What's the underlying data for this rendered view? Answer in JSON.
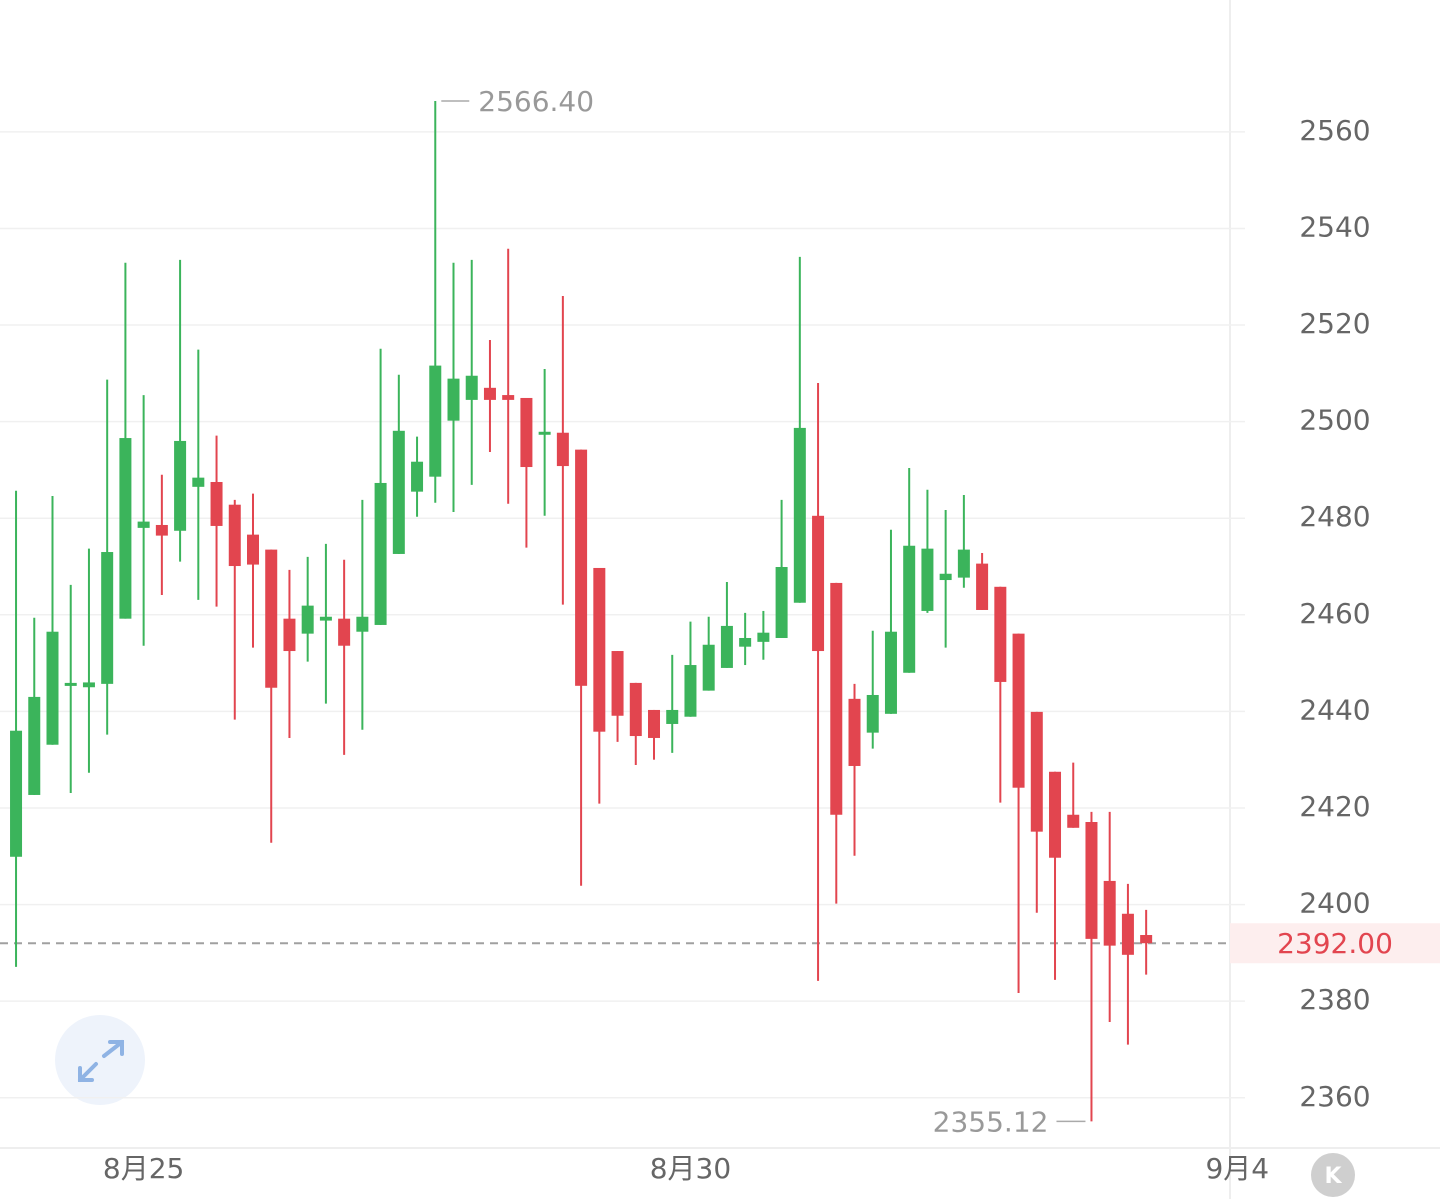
{
  "chart_data": {
    "type": "candlestick",
    "open": [
      2409.9,
      2422.7,
      2433.1,
      2445.5,
      2445.0,
      2445.7,
      2459.2,
      2478.0,
      2478.6,
      2477.4,
      2486.5,
      2487.5,
      2482.8,
      2476.6,
      2473.5,
      2459.2,
      2456.1,
      2458.8,
      2459.2,
      2456.5,
      2457.9,
      2472.6,
      2485.5,
      2488.6,
      2500.2,
      2504.5,
      2507.0,
      2505.5,
      2504.9,
      2497.5,
      2497.7,
      2494.2,
      2469.7,
      2452.5,
      2445.9,
      2440.3,
      2437.4,
      2438.9,
      2444.3,
      2449.0,
      2453.4,
      2454.4,
      2455.2,
      2462.5,
      2480.5,
      2466.6,
      2442.6,
      2435.6,
      2439.5,
      2448.0,
      2460.8,
      2467.2,
      2467.7,
      2470.6,
      2465.8,
      2456.1,
      2439.9,
      2427.5,
      2418.6,
      2417.1,
      2404.9,
      2398.1,
      2393.7
    ],
    "high": [
      2485.7,
      2459.4,
      2484.6,
      2466.2,
      2473.7,
      2508.7,
      2532.9,
      2505.5,
      2489.0,
      2533.5,
      2514.9,
      2497.1,
      2483.8,
      2485.1,
      2473.5,
      2469.3,
      2472.0,
      2474.7,
      2471.4,
      2483.8,
      2515.1,
      2509.7,
      2496.9,
      2566.4,
      2532.9,
      2533.5,
      2516.9,
      2535.8,
      2504.9,
      2510.9,
      2526.0,
      2494.2,
      2469.7,
      2452.5,
      2445.9,
      2440.3,
      2451.7,
      2458.6,
      2459.6,
      2466.8,
      2460.4,
      2460.8,
      2483.8,
      2534.1,
      2508.0,
      2466.6,
      2445.7,
      2456.7,
      2477.6,
      2490.4,
      2485.9,
      2481.7,
      2484.8,
      2472.8,
      2465.8,
      2456.1,
      2439.9,
      2427.5,
      2429.4,
      2419.2,
      2419.2,
      2404.3,
      2398.9
    ],
    "low": [
      2387.1,
      2422.7,
      2433.1,
      2423.1,
      2427.3,
      2435.2,
      2459.2,
      2453.6,
      2464.1,
      2471.0,
      2463.1,
      2461.7,
      2438.3,
      2453.2,
      2412.8,
      2434.5,
      2450.3,
      2441.6,
      2431.0,
      2436.2,
      2457.9,
      2472.6,
      2480.3,
      2483.2,
      2481.3,
      2486.9,
      2493.7,
      2483.0,
      2473.9,
      2480.5,
      2462.1,
      2403.9,
      2420.9,
      2433.7,
      2428.9,
      2430.0,
      2431.4,
      2438.9,
      2444.3,
      2449.0,
      2449.6,
      2450.7,
      2455.2,
      2462.5,
      2384.2,
      2400.2,
      2410.1,
      2432.3,
      2439.5,
      2448.0,
      2460.4,
      2453.2,
      2465.6,
      2461.0,
      2421.1,
      2381.7,
      2398.3,
      2384.4,
      2415.9,
      2355.12,
      2375.7,
      2371.0,
      2385.5
    ],
    "close": [
      2436.0,
      2443.0,
      2456.5,
      2445.9,
      2446.0,
      2473.0,
      2496.6,
      2479.3,
      2476.4,
      2496.0,
      2488.4,
      2478.4,
      2470.1,
      2470.4,
      2444.9,
      2452.5,
      2461.9,
      2459.6,
      2453.6,
      2459.6,
      2487.3,
      2498.1,
      2491.7,
      2511.6,
      2508.9,
      2509.5,
      2504.5,
      2504.5,
      2490.6,
      2497.9,
      2490.8,
      2445.3,
      2435.8,
      2439.1,
      2434.9,
      2434.5,
      2440.3,
      2449.6,
      2453.8,
      2457.7,
      2455.2,
      2456.3,
      2469.9,
      2498.7,
      2452.5,
      2418.6,
      2428.7,
      2443.4,
      2456.5,
      2474.3,
      2473.7,
      2468.5,
      2473.5,
      2461.0,
      2446.1,
      2424.2,
      2415.1,
      2409.7,
      2415.9,
      2392.9,
      2391.5,
      2389.6,
      2392.0
    ],
    "up_color": "#3bb45b",
    "down_color": "#e2454f",
    "xlim": [
      -0.88,
      66.6
    ],
    "xticks": [
      {
        "value": 7,
        "label": "8月25"
      },
      {
        "value": 37,
        "label": "8月30"
      },
      {
        "value": 67,
        "label": "9月4"
      }
    ],
    "ylim": [
      2349.6,
      2587.3
    ],
    "yticks": [
      2360,
      2380,
      2400,
      2420,
      2440,
      2460,
      2480,
      2500,
      2520,
      2540,
      2560
    ],
    "grid": true,
    "max_marker": {
      "value": 2566.4,
      "label": "2566.40"
    },
    "min_marker": {
      "value": 2355.12,
      "label": "2355.12"
    },
    "last_price": {
      "value": 2392,
      "label": "2392.00"
    },
    "kline_button": "K"
  }
}
